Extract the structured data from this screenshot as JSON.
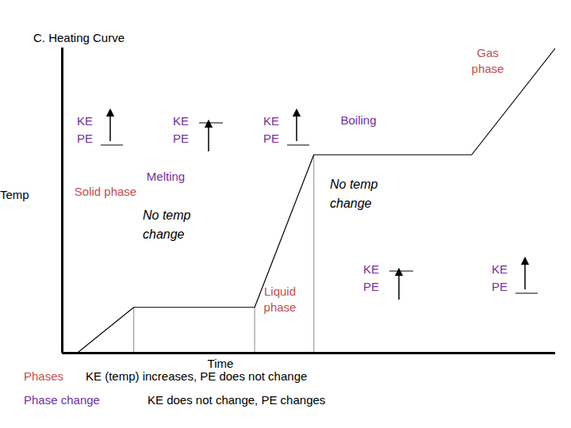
{
  "chart_data": {
    "type": "line",
    "title": "C. Heating Curve",
    "x_label": "Time",
    "y_label": "Temp",
    "tick_labels": false,
    "xlim": [
      0,
      100
    ],
    "ylim": [
      0,
      100
    ],
    "xticks": [],
    "yticks": [],
    "x": [
      3,
      14.5,
      39,
      51,
      83,
      100
    ],
    "values": [
      0,
      15,
      15,
      65,
      65,
      100
    ],
    "color": "#000000",
    "ke_pe": [
      "KE",
      "PE"
    ],
    "key": [
      {
        "label": "Phases",
        "text": "KE (temp) increases, PE does not change",
        "color": "#c0504d"
      },
      {
        "label": "Phase change",
        "text": "KE does not change, PE changes",
        "color": "#7030a0"
      }
    ],
    "segments": [
      {
        "labels": [
          "Solid phase"
        ],
        "kind": "Phases"
      },
      {
        "labels": [
          "Melting",
          "No temp change"
        ],
        "kind": "Phase change"
      },
      {
        "labels": [
          "Liquid phase"
        ],
        "kind": "Phases"
      },
      {
        "labels": [
          "Boiling",
          "No temp change"
        ],
        "kind": "Phase change"
      },
      {
        "labels": [
          "Gas phase"
        ],
        "kind": "Phases"
      }
    ]
  }
}
